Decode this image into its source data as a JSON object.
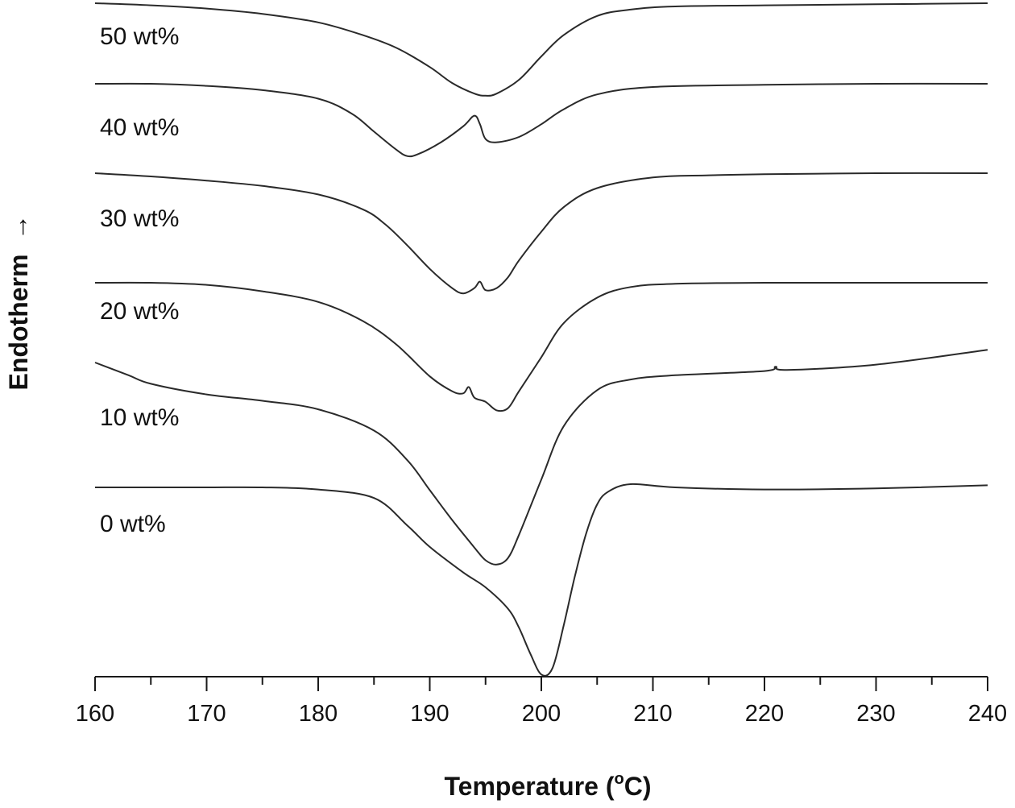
{
  "chart_data": {
    "type": "line",
    "xlabel": "Temperature (°C)",
    "xlabel_main": "Temperature (",
    "xlabel_sup": "o",
    "xlabel_end": "C)",
    "ylabel": "Endotherm",
    "ylabel_arrow": "→",
    "xlim": [
      160,
      240
    ],
    "xticks": [
      160,
      170,
      180,
      190,
      200,
      210,
      220,
      230,
      240
    ],
    "y_ticks_shown": false,
    "grid": false,
    "legend": "inline labels at left",
    "series": [
      {
        "name": "50 wt%",
        "x": [
          160,
          165,
          170,
          175,
          180,
          184,
          187,
          190,
          192,
          194,
          195,
          196,
          198,
          200,
          202,
          205,
          208,
          212,
          220,
          230,
          240
        ],
        "y": [
          0,
          -0.02,
          -0.05,
          -0.1,
          -0.18,
          -0.3,
          -0.42,
          -0.6,
          -0.75,
          -0.85,
          -0.87,
          -0.85,
          -0.72,
          -0.5,
          -0.3,
          -0.12,
          -0.06,
          -0.03,
          -0.02,
          -0.01,
          0
        ]
      },
      {
        "name": "40 wt%",
        "x": [
          160,
          165,
          170,
          175,
          180,
          183,
          185,
          187,
          188,
          189,
          191,
          193,
          194,
          194.5,
          195,
          196,
          198,
          200,
          202,
          205,
          210,
          220,
          230,
          240
        ],
        "y": [
          0,
          0,
          -0.02,
          -0.06,
          -0.14,
          -0.28,
          -0.45,
          -0.62,
          -0.68,
          -0.66,
          -0.55,
          -0.4,
          -0.3,
          -0.38,
          -0.52,
          -0.55,
          -0.5,
          -0.38,
          -0.24,
          -0.1,
          -0.03,
          -0.01,
          0,
          0
        ]
      },
      {
        "name": "30 wt%",
        "x": [
          160,
          165,
          170,
          175,
          180,
          184,
          186,
          188,
          190,
          192,
          193,
          194,
          194.5,
          195,
          196,
          197,
          198,
          200,
          202,
          205,
          210,
          215,
          220,
          230,
          240
        ],
        "y": [
          0,
          -0.03,
          -0.07,
          -0.12,
          -0.2,
          -0.34,
          -0.48,
          -0.68,
          -0.9,
          -1.08,
          -1.13,
          -1.08,
          -1.02,
          -1.1,
          -1.08,
          -0.98,
          -0.82,
          -0.55,
          -0.32,
          -0.14,
          -0.04,
          -0.02,
          -0.01,
          0,
          0
        ]
      },
      {
        "name": "20 wt%",
        "x": [
          160,
          165,
          170,
          175,
          180,
          184,
          187,
          190,
          192,
          193,
          193.5,
          194,
          195,
          196,
          197,
          198,
          200,
          202,
          205,
          208,
          212,
          220,
          230,
          240
        ],
        "y": [
          0,
          0,
          -0.02,
          -0.08,
          -0.18,
          -0.36,
          -0.58,
          -0.88,
          -1.02,
          -1.04,
          -0.98,
          -1.08,
          -1.12,
          -1.2,
          -1.18,
          -1.02,
          -0.7,
          -0.38,
          -0.14,
          -0.04,
          -0.01,
          0,
          0,
          0
        ]
      },
      {
        "name": "10 wt%",
        "x": [
          160,
          163,
          165,
          170,
          175,
          180,
          185,
          188,
          190,
          192,
          194,
          195,
          196,
          197,
          198,
          200,
          202,
          205,
          208,
          212,
          220,
          221,
          222,
          230,
          240
        ],
        "y": [
          0,
          -0.12,
          -0.2,
          -0.3,
          -0.36,
          -0.44,
          -0.64,
          -0.92,
          -1.2,
          -1.48,
          -1.74,
          -1.86,
          -1.9,
          -1.84,
          -1.62,
          -1.1,
          -0.6,
          -0.26,
          -0.16,
          -0.12,
          -0.08,
          -0.04,
          -0.07,
          -0.02,
          0.12
        ]
      },
      {
        "name": "0 wt%",
        "x": [
          160,
          165,
          170,
          175,
          180,
          185,
          188,
          190,
          193,
          195,
          197,
          198,
          199,
          200,
          201,
          202,
          203,
          204,
          205,
          206,
          208,
          212,
          220,
          230,
          240
        ],
        "y": [
          0,
          0,
          0,
          0,
          -0.02,
          -0.1,
          -0.36,
          -0.56,
          -0.8,
          -0.94,
          -1.14,
          -1.32,
          -1.56,
          -1.76,
          -1.7,
          -1.3,
          -0.84,
          -0.44,
          -0.16,
          -0.04,
          0.03,
          0,
          -0.02,
          -0.01,
          0.02
        ]
      }
    ]
  }
}
